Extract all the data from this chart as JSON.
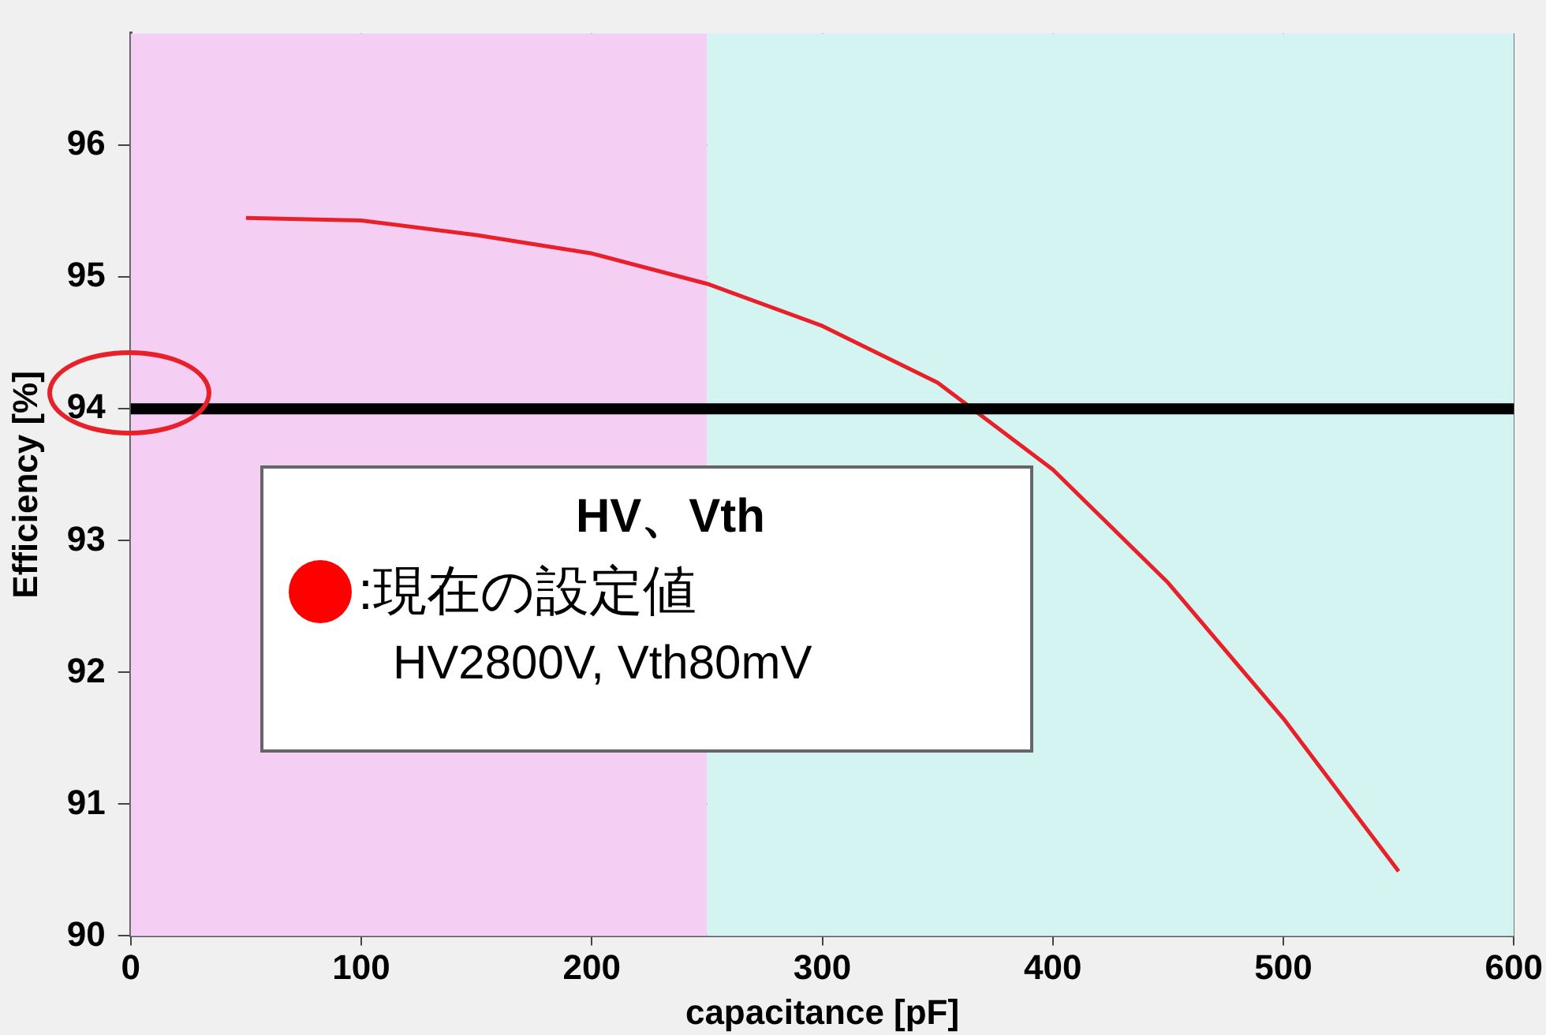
{
  "chart_data": {
    "type": "line",
    "xlabel": "capacitance [pF]",
    "ylabel": "Efficiency [%]",
    "x": [
      50,
      100,
      150,
      200,
      250,
      300,
      350,
      400,
      450,
      500,
      550
    ],
    "series": [
      {
        "color": "#e8202a",
        "values": [
          95.45,
          95.43,
          95.32,
          95.18,
          94.95,
          94.63,
          94.2,
          93.54,
          92.68,
          91.65,
          90.49
        ]
      }
    ],
    "xlim": [
      0,
      600
    ],
    "xticks": [
      0,
      100,
      200,
      300,
      400,
      500,
      600
    ],
    "ylim": [
      90,
      96.85
    ],
    "yticks": [
      90,
      91,
      92,
      93,
      94,
      95,
      96
    ],
    "grid": true,
    "marker": "none",
    "line_style": "solid",
    "bands": [
      {
        "axis": "x",
        "from": 0,
        "to": 250,
        "color": "#f5cff3"
      },
      {
        "axis": "x",
        "from": 250,
        "to": 600,
        "color": "#d4f4f1"
      }
    ],
    "ref_lines": [
      {
        "axis": "y",
        "value": 94,
        "color": "#000000"
      }
    ],
    "annotations": [
      "HV、Vth",
      ":現在の設定値",
      "HV2800V, Vth80mV"
    ]
  }
}
